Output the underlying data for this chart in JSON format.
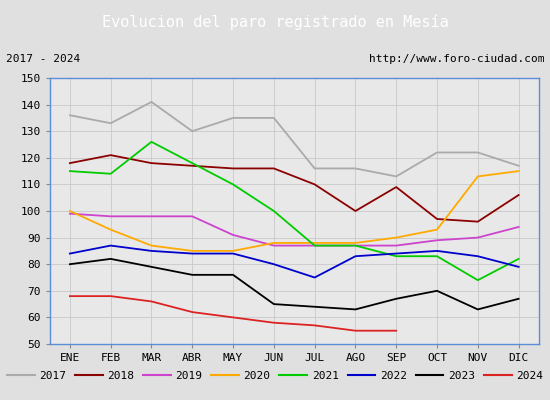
{
  "title": "Evolucion del paro registrado en Mesía",
  "subtitle_left": "2017 - 2024",
  "subtitle_right": "http://www.foro-ciudad.com",
  "months": [
    "ENE",
    "FEB",
    "MAR",
    "ABR",
    "MAY",
    "JUN",
    "JUL",
    "AGO",
    "SEP",
    "OCT",
    "NOV",
    "DIC"
  ],
  "ylim": [
    50,
    150
  ],
  "yticks": [
    50,
    60,
    70,
    80,
    90,
    100,
    110,
    120,
    130,
    140,
    150
  ],
  "series": {
    "2017": {
      "color": "#aaaaaa",
      "data": [
        136,
        133,
        141,
        130,
        135,
        135,
        116,
        116,
        113,
        122,
        122,
        117
      ]
    },
    "2018": {
      "color": "#8b0000",
      "data": [
        118,
        121,
        118,
        117,
        116,
        116,
        110,
        100,
        109,
        97,
        96,
        106
      ]
    },
    "2019": {
      "color": "#cc44cc",
      "data": [
        99,
        98,
        98,
        98,
        91,
        87,
        87,
        87,
        87,
        89,
        90,
        94
      ]
    },
    "2020": {
      "color": "#ffaa00",
      "data": [
        100,
        93,
        87,
        85,
        85,
        88,
        88,
        88,
        90,
        93,
        113,
        115
      ]
    },
    "2021": {
      "color": "#00cc00",
      "data": [
        115,
        114,
        126,
        118,
        110,
        100,
        87,
        87,
        83,
        83,
        74,
        82
      ]
    },
    "2022": {
      "color": "#0000cc",
      "data": [
        84,
        87,
        85,
        84,
        84,
        80,
        75,
        83,
        84,
        85,
        83,
        79
      ]
    },
    "2023": {
      "color": "#000000",
      "data": [
        80,
        82,
        79,
        76,
        76,
        65,
        64,
        63,
        67,
        70,
        63,
        67
      ]
    },
    "2024": {
      "color": "#dd2222",
      "data": [
        68,
        68,
        66,
        62,
        60,
        58,
        57,
        55,
        55,
        null,
        null,
        null
      ]
    }
  },
  "title_bg": "#5b8dd9",
  "title_color": "#ffffff",
  "title_fontsize": 11,
  "subtitle_fontsize": 8,
  "legend_fontsize": 8,
  "axis_fontsize": 8,
  "fig_bg": "#e0e0e0",
  "plot_bg": "#e8e8e8"
}
